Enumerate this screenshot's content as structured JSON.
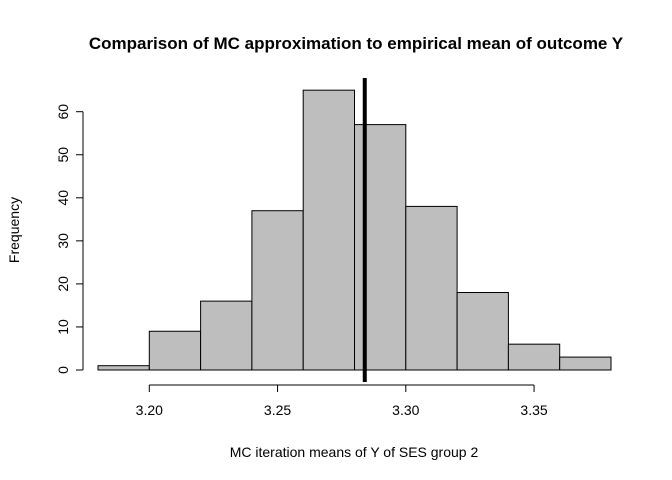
{
  "chart_data": {
    "type": "bar",
    "title": "Comparison of MC approximation to empirical mean of outcome Y",
    "xlabel": "MC iteration means of Y of SES group 2",
    "ylabel": "Frequency",
    "bins": [
      {
        "start": 3.18,
        "end": 3.2,
        "count": 1
      },
      {
        "start": 3.2,
        "end": 3.22,
        "count": 9
      },
      {
        "start": 3.22,
        "end": 3.24,
        "count": 16
      },
      {
        "start": 3.24,
        "end": 3.26,
        "count": 37
      },
      {
        "start": 3.26,
        "end": 3.28,
        "count": 65
      },
      {
        "start": 3.28,
        "end": 3.3,
        "count": 57
      },
      {
        "start": 3.3,
        "end": 3.32,
        "count": 38
      },
      {
        "start": 3.32,
        "end": 3.34,
        "count": 18
      },
      {
        "start": 3.34,
        "end": 3.36,
        "count": 6
      },
      {
        "start": 3.36,
        "end": 3.38,
        "count": 3
      }
    ],
    "x_ticks": [
      "3.20",
      "3.25",
      "3.30",
      "3.35"
    ],
    "y_ticks": [
      "0",
      "10",
      "20",
      "30",
      "40",
      "50",
      "60"
    ],
    "xlim": [
      3.18,
      3.38
    ],
    "ylim": [
      0,
      68
    ],
    "vertical_line_x": 3.284,
    "bar_fill": "#bebebe",
    "bar_stroke": "#000000",
    "line_color": "#000000",
    "grid": false
  }
}
